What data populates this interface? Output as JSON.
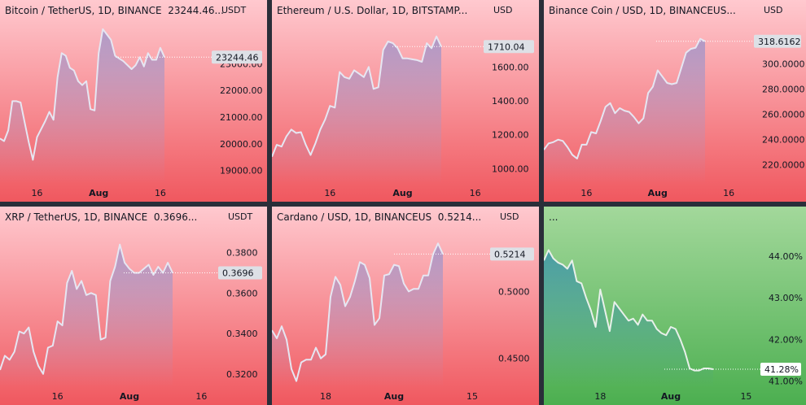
{
  "chart_data": [
    {
      "type": "area",
      "title": "Bitcoin / TetherUS, 1D, BINANCE",
      "last_value_text": "23244.46...",
      "currency": "USDT",
      "theme": "red",
      "ylim": [
        18500,
        24600
      ],
      "yticks": [
        19000,
        20000,
        21000,
        22000,
        23000
      ],
      "ytick_labels": [
        "19000.00",
        "20000.00",
        "21000.00",
        "22000.00",
        "23000.00"
      ],
      "price_label": "23244.46",
      "x_ticks": [
        {
          "label": "16",
          "i": 9,
          "bold": false
        },
        {
          "label": "Aug",
          "i": 24,
          "bold": true
        },
        {
          "label": "16",
          "i": 39,
          "bold": false
        }
      ],
      "values": [
        20200,
        20100,
        20500,
        21600,
        21600,
        21550,
        20800,
        20050,
        19400,
        20250,
        20550,
        20850,
        21200,
        20900,
        22500,
        23400,
        23300,
        22850,
        22750,
        22350,
        22200,
        22350,
        21300,
        21250,
        23400,
        24300,
        24100,
        23900,
        23300,
        23200,
        23100,
        22950,
        22800,
        22950,
        23250,
        22900,
        23400,
        23150,
        23150,
        23600,
        23250
      ]
    },
    {
      "type": "area",
      "title": "Ethereum / U.S. Dollar, 1D, BITSTAMP...",
      "currency": "USD",
      "theme": "red",
      "ylim": [
        910,
        1870
      ],
      "yticks": [
        1000,
        1200,
        1400,
        1600
      ],
      "ytick_labels": [
        "1000.00",
        "1200.00",
        "1400.00",
        "1600.00"
      ],
      "price_label": "1710.04",
      "x_ticks": [
        {
          "label": "16",
          "i": 12,
          "bold": false
        },
        {
          "label": "Aug",
          "i": 27,
          "bold": true
        },
        {
          "label": "16",
          "i": 42,
          "bold": false
        }
      ],
      "values": [
        1070,
        1140,
        1130,
        1190,
        1230,
        1210,
        1215,
        1140,
        1080,
        1150,
        1230,
        1290,
        1370,
        1360,
        1570,
        1540,
        1530,
        1580,
        1560,
        1540,
        1600,
        1470,
        1480,
        1700,
        1750,
        1740,
        1710,
        1650,
        1650,
        1645,
        1640,
        1630,
        1740,
        1710,
        1780,
        1720
      ]
    },
    {
      "type": "area",
      "title": "Binance Coin / USD, 1D, BINANCEUS...",
      "currency": "USD",
      "theme": "red",
      "ylim": [
        205,
        334
      ],
      "yticks": [
        220,
        240,
        260,
        280,
        300
      ],
      "ytick_labels": [
        "220.0000",
        "240.0000",
        "260.0000",
        "280.0000",
        "300.0000"
      ],
      "price_label": "318.6162",
      "x_ticks": [
        {
          "label": "16",
          "i": 9,
          "bold": false
        },
        {
          "label": "Aug",
          "i": 24,
          "bold": true
        },
        {
          "label": "16",
          "i": 39,
          "bold": false
        }
      ],
      "values": [
        232,
        237,
        238,
        240,
        239,
        234,
        228,
        225,
        236,
        236,
        246,
        245,
        255,
        266,
        269,
        261,
        265,
        263,
        262,
        258,
        253,
        257,
        277,
        282,
        295,
        290,
        285,
        284,
        285,
        297,
        309,
        312,
        313,
        320,
        318
      ]
    },
    {
      "type": "area",
      "title": "XRP / TetherUS, 1D, BINANCE",
      "last_value_text": "0.3696...",
      "currency": "USDT",
      "theme": "red",
      "ylim": [
        0.3135,
        0.3915
      ],
      "yticks": [
        0.32,
        0.34,
        0.36,
        0.38
      ],
      "ytick_labels": [
        "0.3200",
        "0.3400",
        "0.3600",
        "0.3800"
      ],
      "price_label": "0.3696",
      "x_ticks": [
        {
          "label": "16",
          "i": 12,
          "bold": false
        },
        {
          "label": "Aug",
          "i": 27,
          "bold": true
        },
        {
          "label": "16",
          "i": 42,
          "bold": false
        }
      ],
      "values": [
        0.322,
        0.329,
        0.327,
        0.331,
        0.341,
        0.34,
        0.343,
        0.331,
        0.324,
        0.32,
        0.333,
        0.334,
        0.346,
        0.344,
        0.365,
        0.371,
        0.362,
        0.366,
        0.359,
        0.36,
        0.359,
        0.337,
        0.338,
        0.366,
        0.373,
        0.384,
        0.375,
        0.372,
        0.37,
        0.37,
        0.372,
        0.374,
        0.369,
        0.373,
        0.37,
        0.375,
        0.37
      ]
    },
    {
      "type": "area",
      "title": "Cardano / USD, 1D, BINANCEUS",
      "last_value_text": "0.5214...",
      "currency": "USD",
      "theme": "red",
      "ylim": [
        0.4285,
        0.5465
      ],
      "yticks": [
        0.45,
        0.5
      ],
      "ytick_labels": [
        "0.4500",
        "0.5000"
      ],
      "price_label": "0.5214",
      "x_ticks": [
        {
          "label": "18",
          "i": 11,
          "bold": false
        },
        {
          "label": "Aug",
          "i": 25,
          "bold": true
        },
        {
          "label": "15",
          "i": 41,
          "bold": false
        }
      ],
      "values": [
        0.471,
        0.465,
        0.474,
        0.464,
        0.442,
        0.433,
        0.447,
        0.449,
        0.449,
        0.458,
        0.45,
        0.453,
        0.496,
        0.511,
        0.505,
        0.489,
        0.496,
        0.508,
        0.522,
        0.52,
        0.51,
        0.475,
        0.48,
        0.512,
        0.513,
        0.52,
        0.519,
        0.506,
        0.5,
        0.502,
        0.502,
        0.512,
        0.512,
        0.528,
        0.536,
        0.528
      ]
    },
    {
      "type": "area",
      "title": "...",
      "currency": "",
      "theme": "green",
      "ylim": [
        40.85,
        44.65
      ],
      "yticks": [
        41,
        42,
        43,
        44
      ],
      "ytick_labels": [
        "41.00%",
        "42.00%",
        "43.00%",
        "44.00%"
      ],
      "price_label": "41.28%",
      "x_ticks": [
        {
          "label": "18",
          "i": 12,
          "bold": false
        },
        {
          "label": "Aug",
          "i": 27,
          "bold": true
        },
        {
          "label": "15",
          "i": 43,
          "bold": false
        }
      ],
      "values": [
        43.9,
        44.15,
        43.95,
        43.85,
        43.8,
        43.7,
        43.9,
        43.4,
        43.35,
        43.0,
        42.7,
        42.3,
        43.2,
        42.7,
        42.2,
        42.9,
        42.75,
        42.6,
        42.45,
        42.5,
        42.35,
        42.6,
        42.45,
        42.45,
        42.25,
        42.15,
        42.1,
        42.3,
        42.25,
        42.0,
        41.7,
        41.3,
        41.25,
        41.25,
        41.3,
        41.3,
        41.28
      ]
    }
  ]
}
